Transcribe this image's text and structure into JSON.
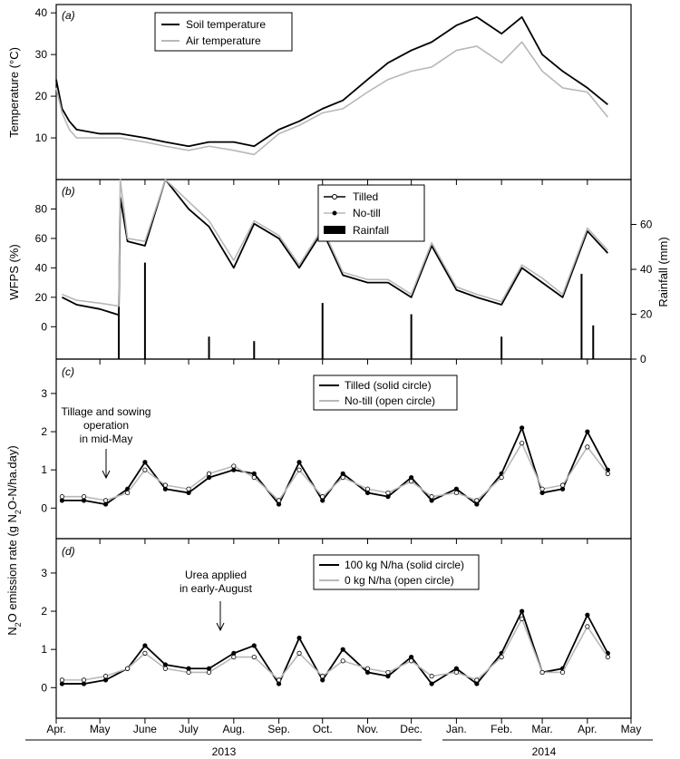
{
  "chart_data": [
    {
      "panel": "(a)",
      "type": "line",
      "ylabel": "Temperature (°C)",
      "yticks": [
        10,
        20,
        30,
        40
      ],
      "ylim": [
        0,
        42
      ],
      "legend_placement": "top-left-center",
      "series": [
        {
          "name": "Soil temperature",
          "color": "#000000",
          "x_dates": [
            "2013-04-01",
            "2013-04-05",
            "2013-04-10",
            "2013-04-15",
            "2013-05-01",
            "2013-05-15",
            "2013-06-01",
            "2013-06-15",
            "2013-07-01",
            "2013-07-15",
            "2013-08-01",
            "2013-08-15",
            "2013-09-01",
            "2013-09-15",
            "2013-10-01",
            "2013-10-15",
            "2013-11-01",
            "2013-11-15",
            "2013-12-01",
            "2013-12-15",
            "2014-01-01",
            "2014-01-15",
            "2014-02-01",
            "2014-02-15",
            "2014-03-01",
            "2014-03-15",
            "2014-04-01",
            "2014-04-15"
          ],
          "values": [
            24,
            17,
            14,
            12,
            11,
            11,
            10,
            9,
            8,
            9,
            9,
            8,
            12,
            14,
            17,
            19,
            24,
            28,
            31,
            33,
            37,
            39,
            35,
            39,
            30,
            26,
            22,
            18
          ]
        },
        {
          "name": "Air temperature",
          "color": "#b8b8b8",
          "x_dates": [
            "2013-04-01",
            "2013-04-05",
            "2013-04-10",
            "2013-04-15",
            "2013-05-01",
            "2013-05-15",
            "2013-06-01",
            "2013-06-15",
            "2013-07-01",
            "2013-07-15",
            "2013-08-01",
            "2013-08-15",
            "2013-09-01",
            "2013-09-15",
            "2013-10-01",
            "2013-10-15",
            "2013-11-01",
            "2013-11-15",
            "2013-12-01",
            "2013-12-15",
            "2014-01-01",
            "2014-01-15",
            "2014-02-01",
            "2014-02-15",
            "2014-03-01",
            "2014-03-15",
            "2014-04-01",
            "2014-04-15"
          ],
          "values": [
            22,
            16,
            12,
            10,
            10,
            10,
            9,
            8,
            7,
            8,
            7,
            6,
            11,
            13,
            16,
            17,
            21,
            24,
            26,
            27,
            31,
            32,
            28,
            33,
            26,
            22,
            21,
            15
          ]
        }
      ]
    },
    {
      "panel": "(b)",
      "type": "line",
      "ylabel": "WFPS (%)",
      "y2label": "Rainfall (mm)",
      "yticks": [
        0,
        20,
        40,
        60,
        80
      ],
      "y2ticks": [
        0,
        20,
        40,
        60
      ],
      "ylim": [
        -22,
        100
      ],
      "y2lim": [
        0,
        80
      ],
      "series": [
        {
          "name": "Tilled",
          "color": "#000000",
          "x_dates": [
            "2013-04-05",
            "2013-04-15",
            "2013-05-01",
            "2013-05-14",
            "2013-05-15",
            "2013-05-20",
            "2013-06-01",
            "2013-06-15",
            "2013-07-01",
            "2013-07-15",
            "2013-08-01",
            "2013-08-15",
            "2013-09-01",
            "2013-09-15",
            "2013-10-01",
            "2013-10-15",
            "2013-11-01",
            "2013-11-15",
            "2013-12-01",
            "2013-12-15",
            "2014-01-01",
            "2014-01-15",
            "2014-02-01",
            "2014-02-15",
            "2014-03-01",
            "2014-03-15",
            "2014-04-01",
            "2014-04-15"
          ],
          "values": [
            20,
            15,
            12,
            8,
            88,
            58,
            55,
            100,
            80,
            68,
            40,
            70,
            60,
            40,
            65,
            35,
            30,
            30,
            20,
            55,
            25,
            20,
            15,
            40,
            30,
            20,
            65,
            50
          ]
        },
        {
          "name": "No-till",
          "color": "#b8b8b8",
          "x_dates": [
            "2013-04-05",
            "2013-04-15",
            "2013-05-01",
            "2013-05-14",
            "2013-05-15",
            "2013-05-20",
            "2013-06-01",
            "2013-06-15",
            "2013-07-01",
            "2013-07-15",
            "2013-08-01",
            "2013-08-15",
            "2013-09-01",
            "2013-09-15",
            "2013-10-01",
            "2013-10-15",
            "2013-11-01",
            "2013-11-15",
            "2013-12-01",
            "2013-12-15",
            "2014-01-01",
            "2014-01-15",
            "2014-02-01",
            "2014-02-15",
            "2014-03-01",
            "2014-03-15",
            "2014-04-01",
            "2014-04-15"
          ],
          "values": [
            22,
            18,
            16,
            14,
            100,
            60,
            58,
            100,
            85,
            72,
            45,
            72,
            62,
            42,
            67,
            37,
            32,
            32,
            22,
            57,
            27,
            22,
            17,
            42,
            33,
            22,
            67,
            52
          ]
        },
        {
          "name": "Rainfall",
          "color": "#000000",
          "kind": "bar",
          "axis": "right",
          "x_dates": [
            "2013-05-14",
            "2013-06-01",
            "2013-07-15",
            "2013-08-15",
            "2013-10-01",
            "2013-12-01",
            "2014-02-01",
            "2014-03-28",
            "2014-04-05"
          ],
          "values": [
            22,
            43,
            10,
            8,
            25,
            20,
            10,
            38,
            15
          ]
        }
      ]
    },
    {
      "panel": "(c)",
      "type": "line",
      "ylabel": "N2O emission rate (g N2O-N/ha.day)",
      "yticks": [
        0,
        1,
        2,
        3
      ],
      "ylim": [
        -0.8,
        3.9
      ],
      "annotation": [
        "Tillage and sowing",
        "operation",
        "in mid-May"
      ],
      "series": [
        {
          "name": "Tilled (solid circle)",
          "color": "#000000",
          "x_dates": [
            "2013-04-05",
            "2013-04-20",
            "2013-05-05",
            "2013-05-20",
            "2013-06-01",
            "2013-06-15",
            "2013-07-01",
            "2013-07-15",
            "2013-08-01",
            "2013-08-15",
            "2013-09-01",
            "2013-09-15",
            "2013-10-01",
            "2013-10-15",
            "2013-11-01",
            "2013-11-15",
            "2013-12-01",
            "2013-12-15",
            "2014-01-01",
            "2014-01-15",
            "2014-02-01",
            "2014-02-15",
            "2014-03-01",
            "2014-03-15",
            "2014-04-01",
            "2014-04-15"
          ],
          "values": [
            0.2,
            0.2,
            0.1,
            0.5,
            1.2,
            0.5,
            0.4,
            0.8,
            1.0,
            0.9,
            0.1,
            1.2,
            0.2,
            0.9,
            0.4,
            0.3,
            0.8,
            0.2,
            0.5,
            0.1,
            0.9,
            2.1,
            0.4,
            0.5,
            2.0,
            1.0
          ]
        },
        {
          "name": "No-till (open circle)",
          "color": "#b8b8b8",
          "x_dates": [
            "2013-04-05",
            "2013-04-20",
            "2013-05-05",
            "2013-05-20",
            "2013-06-01",
            "2013-06-15",
            "2013-07-01",
            "2013-07-15",
            "2013-08-01",
            "2013-08-15",
            "2013-09-01",
            "2013-09-15",
            "2013-10-01",
            "2013-10-15",
            "2013-11-01",
            "2013-11-15",
            "2013-12-01",
            "2013-12-15",
            "2014-01-01",
            "2014-01-15",
            "2014-02-01",
            "2014-02-15",
            "2014-03-01",
            "2014-03-15",
            "2014-04-01",
            "2014-04-15"
          ],
          "values": [
            0.3,
            0.3,
            0.2,
            0.4,
            1.0,
            0.6,
            0.5,
            0.9,
            1.1,
            0.8,
            0.2,
            1.0,
            0.3,
            0.8,
            0.5,
            0.4,
            0.7,
            0.3,
            0.4,
            0.2,
            0.8,
            1.7,
            0.5,
            0.6,
            1.6,
            0.9
          ]
        }
      ]
    },
    {
      "panel": "(d)",
      "type": "line",
      "ylabel": "N2O emission rate (g N2O-N/ha.day)",
      "yticks": [
        0,
        1,
        2,
        3
      ],
      "ylim": [
        -0.8,
        3.9
      ],
      "annotation": [
        "Urea applied",
        "in early-August"
      ],
      "series": [
        {
          "name": "100 kg N/ha (solid circle)",
          "color": "#000000",
          "x_dates": [
            "2013-04-05",
            "2013-04-20",
            "2013-05-05",
            "2013-05-20",
            "2013-06-01",
            "2013-06-15",
            "2013-07-01",
            "2013-07-15",
            "2013-08-01",
            "2013-08-15",
            "2013-09-01",
            "2013-09-15",
            "2013-10-01",
            "2013-10-15",
            "2013-11-01",
            "2013-11-15",
            "2013-12-01",
            "2013-12-15",
            "2014-01-01",
            "2014-01-15",
            "2014-02-01",
            "2014-02-15",
            "2014-03-01",
            "2014-03-15",
            "2014-04-01",
            "2014-04-15"
          ],
          "values": [
            0.1,
            0.1,
            0.2,
            0.5,
            1.1,
            0.6,
            0.5,
            0.5,
            0.9,
            1.1,
            0.1,
            1.3,
            0.2,
            1.0,
            0.4,
            0.3,
            0.8,
            0.1,
            0.5,
            0.1,
            0.9,
            2.0,
            0.4,
            0.5,
            1.9,
            0.9
          ]
        },
        {
          "name": "0 kg N/ha (open circle)",
          "color": "#b8b8b8",
          "x_dates": [
            "2013-04-05",
            "2013-04-20",
            "2013-05-05",
            "2013-05-20",
            "2013-06-01",
            "2013-06-15",
            "2013-07-01",
            "2013-07-15",
            "2013-08-01",
            "2013-08-15",
            "2013-09-01",
            "2013-09-15",
            "2013-10-01",
            "2013-10-15",
            "2013-11-01",
            "2013-11-15",
            "2013-12-01",
            "2013-12-15",
            "2014-01-01",
            "2014-01-15",
            "2014-02-01",
            "2014-02-15",
            "2014-03-01",
            "2014-03-15",
            "2014-04-01",
            "2014-04-15"
          ],
          "values": [
            0.2,
            0.2,
            0.3,
            0.5,
            0.9,
            0.5,
            0.4,
            0.4,
            0.8,
            0.8,
            0.2,
            0.9,
            0.3,
            0.7,
            0.5,
            0.4,
            0.7,
            0.3,
            0.4,
            0.2,
            0.8,
            1.8,
            0.4,
            0.4,
            1.6,
            0.8
          ]
        }
      ]
    }
  ],
  "xaxis": {
    "month_labels": [
      "Apr.",
      "May",
      "June",
      "July",
      "Aug.",
      "Sep.",
      "Oct.",
      "Nov.",
      "Dec.",
      "Jan.",
      "Feb.",
      "Mar.",
      "Apr.",
      "May"
    ],
    "year_labels": [
      "2013",
      "2014"
    ]
  }
}
